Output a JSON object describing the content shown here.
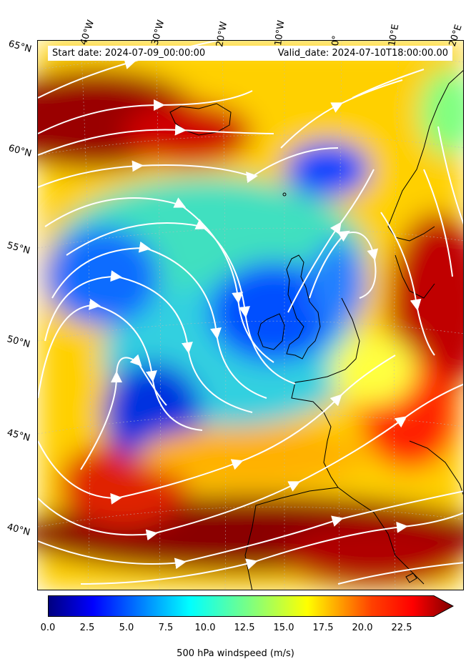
{
  "header": {
    "start_date": "Start date: 2024-07-09_00:00:00",
    "valid_date": "Valid_date: 2024-07-10T18:00:00.00"
  },
  "lon_labels": [
    "40°W",
    "30°W",
    "20°W",
    "10°W",
    "0°",
    "10°E",
    "20°E"
  ],
  "lat_labels": [
    "65°N",
    "60°N",
    "55°N",
    "50°N",
    "45°N",
    "40°N"
  ],
  "colorbar": {
    "ticks": [
      "0.0",
      "2.5",
      "5.0",
      "7.5",
      "10.0",
      "12.5",
      "15.0",
      "17.5",
      "20.0",
      "22.5"
    ],
    "label": "500 hPa windspeed (m/s)",
    "min": 0,
    "max": 25,
    "extend": "max",
    "colormap": "jet",
    "colors": [
      "#00007f",
      "#0000ff",
      "#007fff",
      "#00ffff",
      "#7fff7f",
      "#ffff00",
      "#ff7f00",
      "#ff0000",
      "#7f0000"
    ]
  },
  "map": {
    "field": "500 hPa windspeed",
    "units": "m/s",
    "overlay": "white streamlines",
    "colors": {
      "coast": "#000000",
      "streamline": "#ffffff",
      "grid": "#cccccc"
    }
  }
}
